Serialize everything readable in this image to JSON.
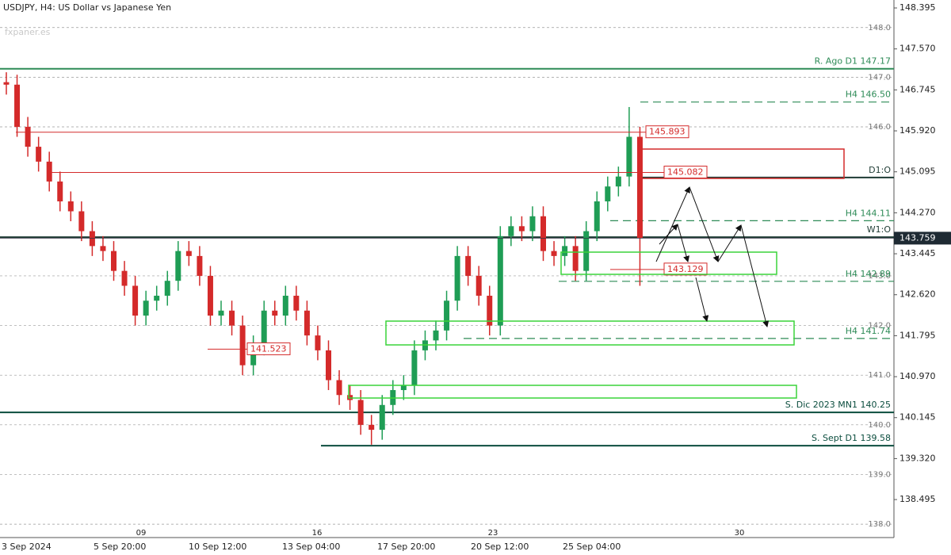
{
  "chart_data": {
    "type": "candlestick",
    "title": "USDJPY, H4:  US Dollar vs Japanese Yen",
    "watermark": "fxpaner.es",
    "colors": {
      "up": "#1f9d55",
      "down": "#d42a2a"
    },
    "open": [
      146.9,
      146.85,
      146.0,
      145.6,
      145.3,
      144.9,
      144.5,
      144.3,
      143.9,
      143.6,
      143.5,
      143.1,
      142.8,
      142.2,
      142.5,
      142.6,
      142.9,
      143.5,
      143.4,
      143.0,
      142.2,
      142.3,
      142.0,
      141.2,
      141.6,
      142.3,
      142.2,
      142.6,
      142.3,
      141.8,
      141.5,
      140.9,
      140.6,
      140.5,
      140.0,
      139.9,
      140.4,
      140.7,
      140.8,
      141.5,
      141.7,
      141.9,
      142.5,
      143.4,
      143.0,
      142.6,
      142.0,
      143.8,
      144.0,
      143.9,
      144.2,
      143.5,
      143.4,
      143.6,
      143.1,
      143.9,
      144.5,
      144.8,
      145.0,
      145.8
    ],
    "high": [
      147.1,
      147.05,
      146.2,
      145.8,
      145.5,
      145.1,
      144.7,
      144.5,
      144.1,
      143.8,
      143.7,
      143.3,
      143.0,
      142.7,
      142.8,
      143.1,
      143.7,
      143.7,
      143.6,
      143.2,
      142.5,
      142.5,
      142.2,
      141.8,
      142.5,
      142.5,
      142.8,
      142.8,
      142.5,
      142.0,
      141.7,
      141.1,
      140.8,
      140.7,
      140.2,
      140.6,
      140.9,
      141.0,
      141.7,
      141.9,
      142.1,
      142.7,
      143.6,
      143.6,
      143.2,
      142.8,
      144.0,
      144.2,
      144.2,
      144.4,
      144.4,
      143.7,
      143.8,
      143.8,
      144.1,
      144.7,
      145.0,
      145.2,
      146.4,
      146.0
    ],
    "low": [
      146.65,
      145.8,
      145.4,
      145.1,
      144.7,
      144.3,
      144.1,
      143.7,
      143.4,
      143.3,
      142.9,
      142.6,
      142.0,
      142.0,
      142.3,
      142.4,
      142.7,
      143.2,
      142.8,
      142.0,
      142.0,
      141.8,
      141.0,
      141.0,
      141.4,
      142.0,
      142.0,
      142.1,
      141.6,
      141.3,
      140.7,
      140.4,
      140.3,
      139.8,
      139.6,
      139.7,
      140.2,
      140.5,
      140.6,
      141.3,
      141.5,
      141.7,
      142.3,
      142.8,
      142.4,
      141.8,
      141.8,
      143.6,
      143.7,
      143.7,
      143.3,
      143.2,
      143.2,
      142.9,
      142.9,
      143.7,
      144.3,
      144.6,
      144.8,
      142.8
    ],
    "close": [
      146.85,
      146.0,
      145.6,
      145.3,
      144.9,
      144.5,
      144.3,
      143.9,
      143.6,
      143.5,
      143.1,
      142.8,
      142.2,
      142.5,
      142.6,
      142.9,
      143.5,
      143.4,
      143.0,
      142.2,
      142.3,
      142.0,
      141.2,
      141.6,
      142.3,
      142.2,
      142.6,
      142.3,
      141.8,
      141.5,
      140.9,
      140.6,
      140.5,
      140.0,
      139.9,
      140.4,
      140.7,
      140.8,
      141.5,
      141.7,
      141.9,
      142.5,
      143.4,
      143.0,
      142.6,
      142.0,
      143.8,
      144.0,
      143.9,
      144.2,
      143.5,
      143.4,
      143.6,
      143.1,
      143.9,
      144.5,
      144.8,
      145.0,
      145.8,
      143.76
    ],
    "ylim": [
      137.73,
      148.555
    ],
    "yticks": [
      148.395,
      {
        "value": 147.57,
        "label": "147.570"
      },
      146.745,
      {
        "value": 145.92,
        "label": "145.920"
      },
      145.095,
      {
        "value": 144.27,
        "label": "144.270"
      },
      143.445,
      {
        "value": 142.62,
        "label": "142.620"
      },
      141.795,
      {
        "value": 140.97,
        "label": "140.970"
      },
      140.145,
      {
        "value": 139.32,
        "label": "139.320"
      },
      138.495
    ],
    "gridlines": [
      {
        "value": 148.0,
        "label": "148.0"
      },
      {
        "value": 147.0,
        "label": "147.0"
      },
      {
        "value": 146.0,
        "label": "146.0"
      },
      {
        "value": 143.0,
        "label": "143.0"
      },
      {
        "value": 142.0,
        "label": "142.0"
      },
      {
        "value": 141.0,
        "label": "141.0"
      },
      {
        "value": 140.0,
        "label": "140.0"
      },
      {
        "value": 139.0,
        "label": "139.0"
      },
      {
        "value": 138.0,
        "label": "138.0"
      }
    ],
    "levels": [
      {
        "label": "R. Ago D1 147.17",
        "value": 147.17,
        "color": "#2e8b57",
        "style": "solid"
      },
      {
        "label": "H4 146.50",
        "value": 146.5,
        "color": "#2e8b57",
        "style": "dashed"
      },
      {
        "label": "D1:O",
        "value": 144.98,
        "color": "#1e3b34",
        "style": "solid"
      },
      {
        "label": "H4 144.11",
        "value": 144.11,
        "color": "#2e8b57",
        "style": "dashed"
      },
      {
        "label": "W1:O",
        "value": 143.78,
        "color": "#1e3b34",
        "style": "solid"
      },
      {
        "label": "H4 142.89",
        "value": 142.89,
        "color": "#2e8b57",
        "style": "dashed"
      },
      {
        "label": "H4 141.74",
        "value": 141.74,
        "color": "#2e8b57",
        "style": "dashed"
      },
      {
        "label": "S. Dic 2023 MN1 140.25",
        "value": 140.25,
        "color": "#0b4d3e",
        "style": "solid"
      },
      {
        "label": "S. Sept D1 139.58",
        "value": 139.58,
        "color": "#0b4d3e",
        "style": "solid"
      }
    ],
    "price_markers": [
      145.893,
      145.082,
      143.129,
      141.523
    ],
    "current_price": 143.759,
    "time_labels": [
      "3 Sep 2024",
      "5 Sep 20:00",
      "10 Sep 12:00",
      "13 Sep 04:00",
      "17 Sep 20:00",
      "20 Sep 12:00",
      "25 Sep 04:00"
    ],
    "day_labels": [
      "09",
      "16",
      "23",
      "30"
    ]
  }
}
